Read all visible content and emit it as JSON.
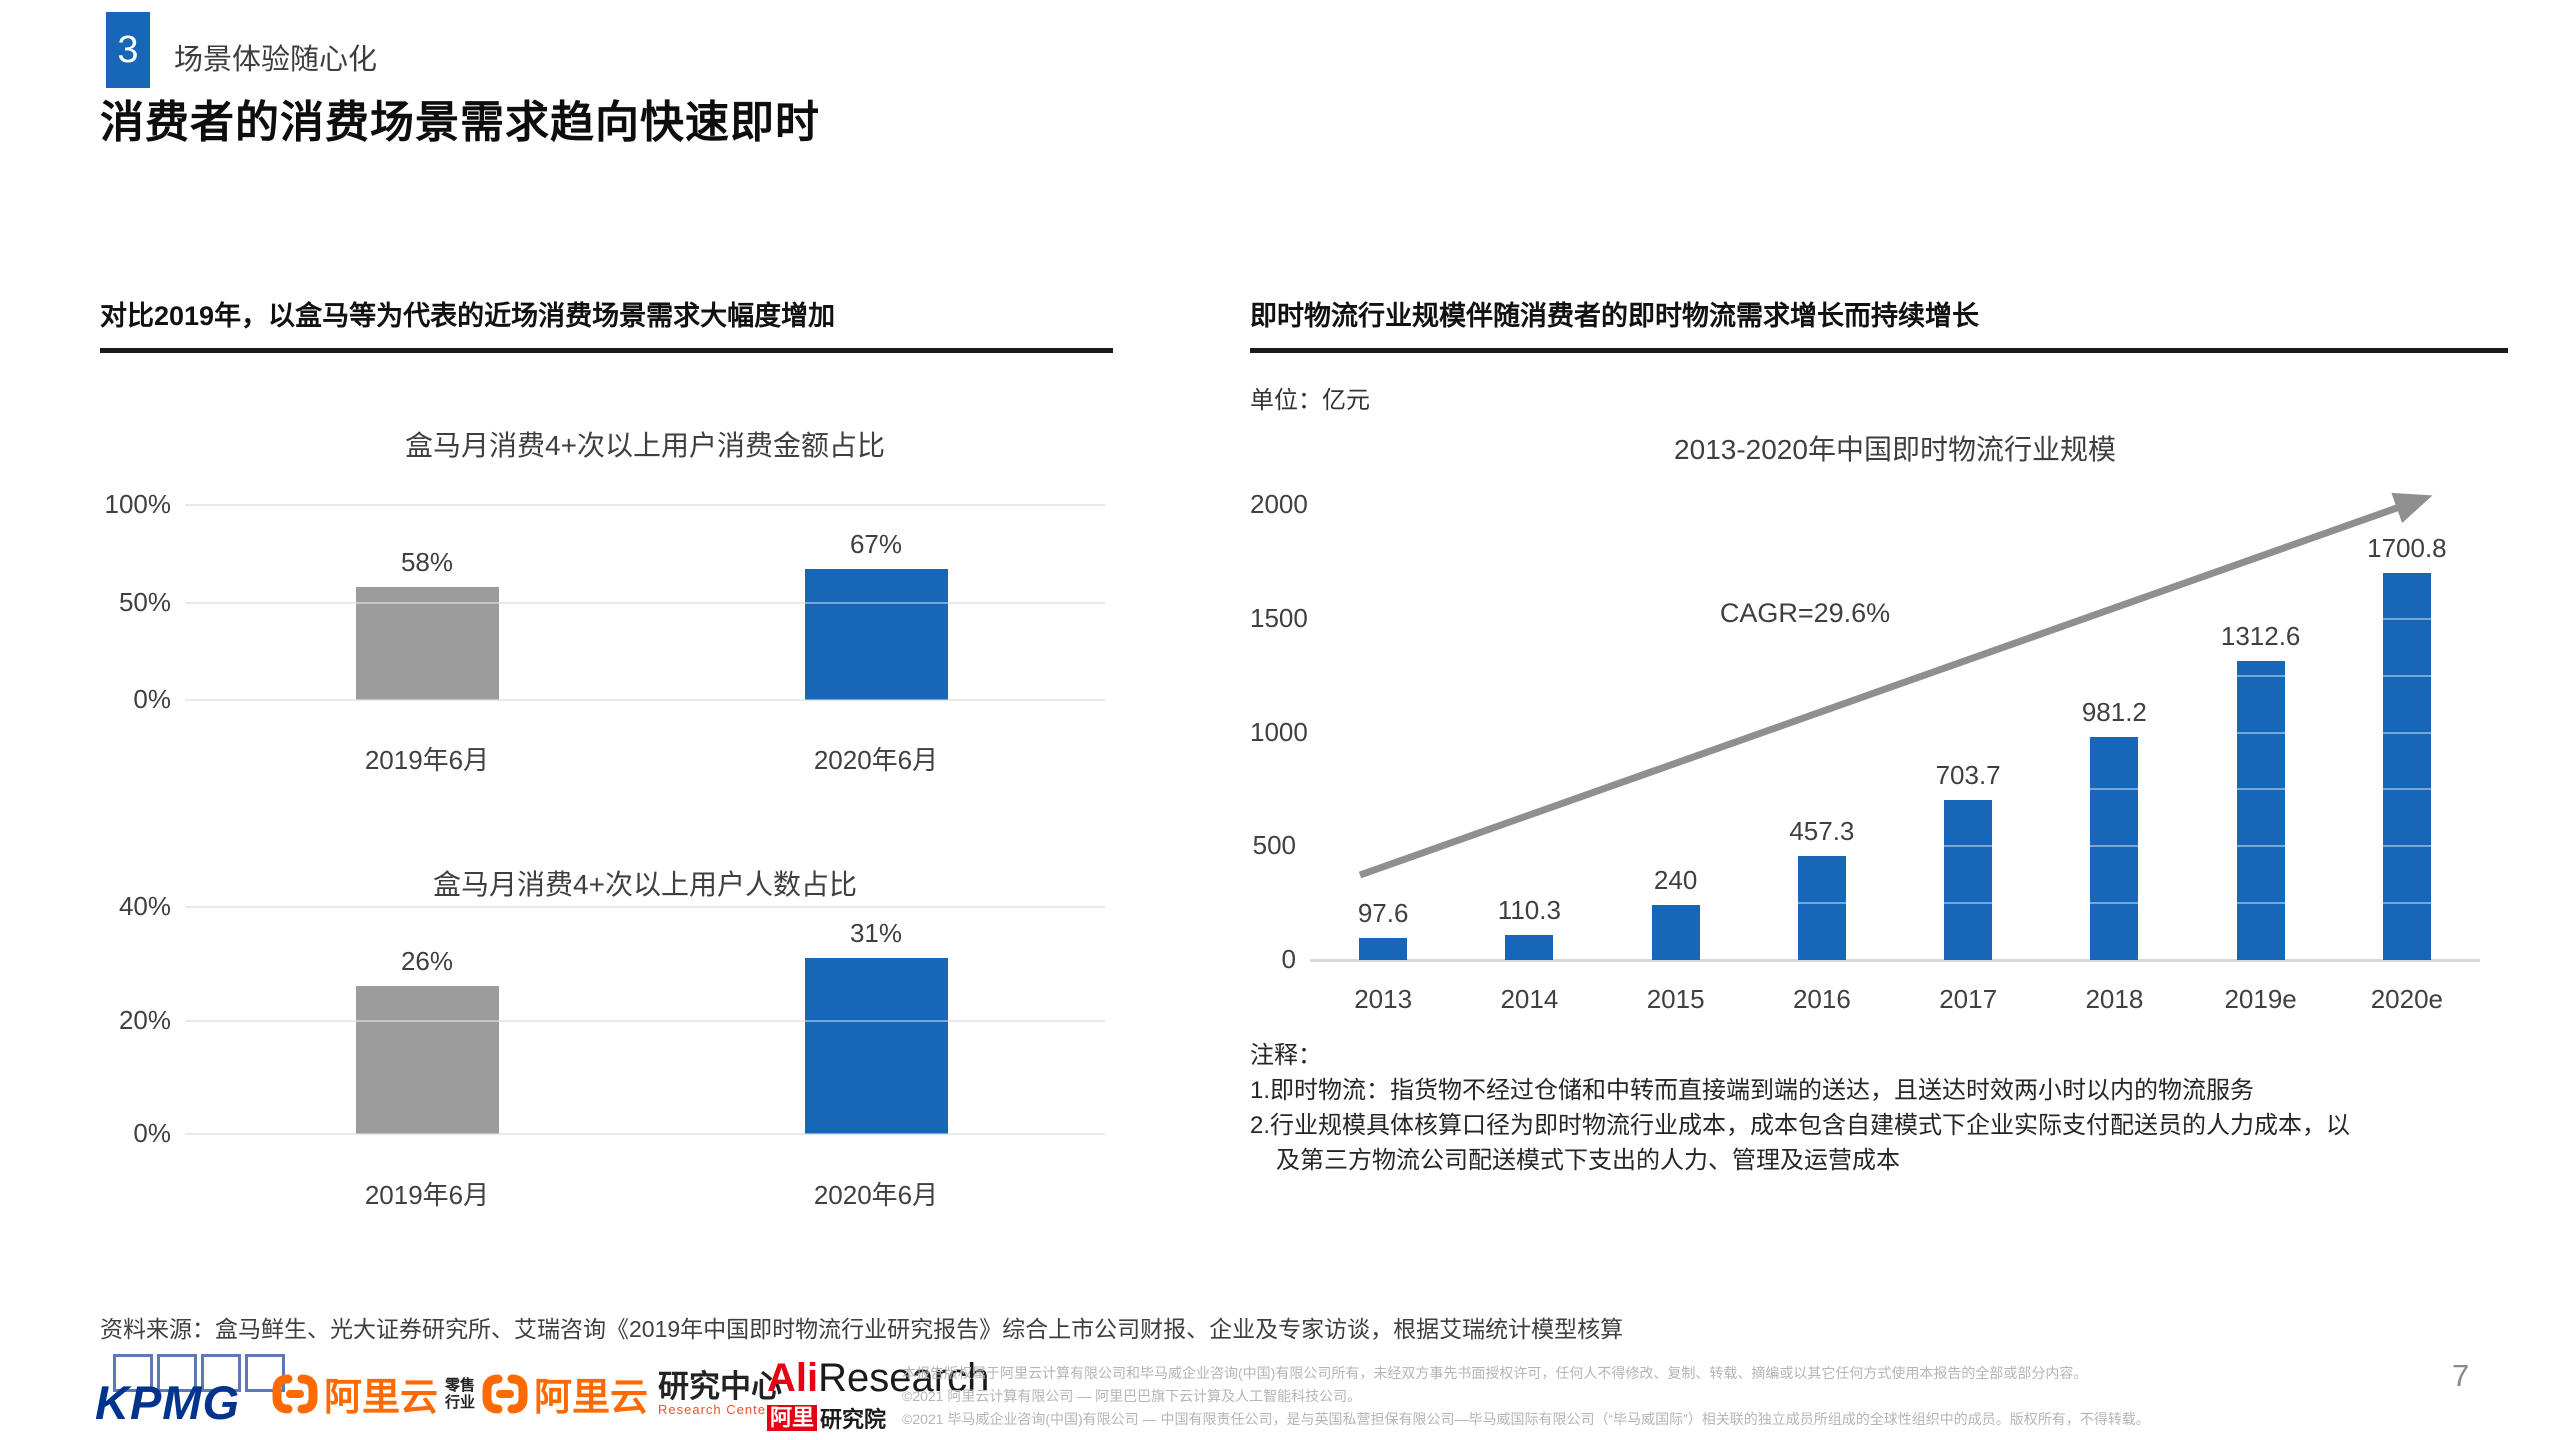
{
  "header": {
    "section_number": "3",
    "section_label": "场景体验随心化",
    "title": "消费者的消费场景需求趋向快速即时"
  },
  "left_panel": {
    "heading": "对比2019年，以盒马等为代表的近场消费场景需求大幅度增加"
  },
  "right_panel": {
    "heading": "即时物流行业规模伴随消费者的即时物流需求增长而持续增长",
    "unit_label": "单位：亿元"
  },
  "chart_data": [
    {
      "type": "bar",
      "title": "盒马月消费4+次以上用户消费金额占比",
      "categories": [
        "2019年6月",
        "2020年6月"
      ],
      "values": [
        58,
        67
      ],
      "value_labels": [
        "58%",
        "67%"
      ],
      "ylim": [
        0,
        100
      ],
      "yticks": [
        100,
        50,
        0
      ],
      "ytick_labels": [
        "100%",
        "50%",
        "0%"
      ],
      "grid": "on",
      "series_colors": [
        "#9C9C9C",
        "#1766B8"
      ]
    },
    {
      "type": "bar",
      "title": "盒马月消费4+次以上用户人数占比",
      "categories": [
        "2019年6月",
        "2020年6月"
      ],
      "values": [
        26,
        31
      ],
      "value_labels": [
        "26%",
        "31%"
      ],
      "ylim": [
        0,
        40
      ],
      "yticks": [
        40,
        20,
        0
      ],
      "ytick_labels": [
        "40%",
        "20%",
        "0%"
      ],
      "grid": "on",
      "series_colors": [
        "#9C9C9C",
        "#1766B8"
      ]
    },
    {
      "type": "bar",
      "title": "2013-2020年中国即时物流行业规模",
      "unit": "亿元",
      "categories": [
        "2013",
        "2014",
        "2015",
        "2016",
        "2017",
        "2018",
        "2019e",
        "2020e"
      ],
      "values": [
        97.6,
        110.3,
        240,
        457.3,
        703.7,
        981.2,
        1312.6,
        1700.8
      ],
      "value_labels": [
        "97.6",
        "110.3",
        "240",
        "457.3",
        "703.7",
        "981.2",
        "1312.6",
        "1700.8"
      ],
      "ylim": [
        0,
        2000
      ],
      "yticks": [
        2000,
        1500,
        1000,
        500,
        0
      ],
      "ytick_labels": [
        "2000",
        "1500",
        "1000",
        "500",
        "0"
      ],
      "grid": "off",
      "annotation": "CAGR=29.6%",
      "trend_arrow": true,
      "bar_color": "#1766B8"
    }
  ],
  "notes": {
    "heading": "注释：",
    "lines": [
      "1.即时物流：指货物不经过仓储和中转而直接端到端的送达，且送达时效两小时以内的物流服务",
      "2.行业规模具体核算口径为即时物流行业成本，成本包含自建模式下企业实际支付配送员的人力成本，以",
      "及第三方物流公司配送模式下支出的人力、管理及运营成本"
    ]
  },
  "footer": {
    "source": "资料来源：盒马鲜生、光大证券研究所、艾瑞咨询《2019年中国即时物流行业研究报告》综合上市公司财报、企业及专家访谈，根据艾瑞统计模型核算",
    "logos": {
      "kpmg": "KPMG",
      "aliyun_retail": {
        "brand": "阿里云",
        "tag_line1": "零售",
        "tag_line2": "行业"
      },
      "aliyun_research": {
        "brand": "阿里云",
        "tag": "研究中心",
        "tag_sub": "Research Center"
      },
      "aliresearch": {
        "part1": "Ali",
        "part2": "Research",
        "sub_badge": "阿里",
        "sub_text": "研究院"
      }
    },
    "disclaimer_lines": [
      "本报告版权属于阿里云计算有限公司和毕马威企业咨询(中国)有限公司所有，未经双方事先书面授权许可，任何人不得修改、复制、转载、摘编或以其它任何方式使用本报告的全部或部分内容。",
      "©2021 阿里云计算有限公司 — 阿里巴巴旗下云计算及人工智能科技公司。",
      "©2021 毕马威企业咨询(中国)有限公司 — 中国有限责任公司，是与英国私营担保有限公司—毕马威国际有限公司（“毕马威国际”）相关联的独立成员所组成的全球性组织中的成员。版权所有，不得转载。"
    ]
  },
  "page_number": "7",
  "colors": {
    "accent_blue": "#1766B8",
    "bar_gray": "#9C9C9C",
    "arrow_gray": "#8F8F8F",
    "gridline_gray": "#D9D9D9",
    "kpmg_blue": "#00338D",
    "aliyun_orange": "#FF6A00",
    "ali_red": "#E60012"
  }
}
